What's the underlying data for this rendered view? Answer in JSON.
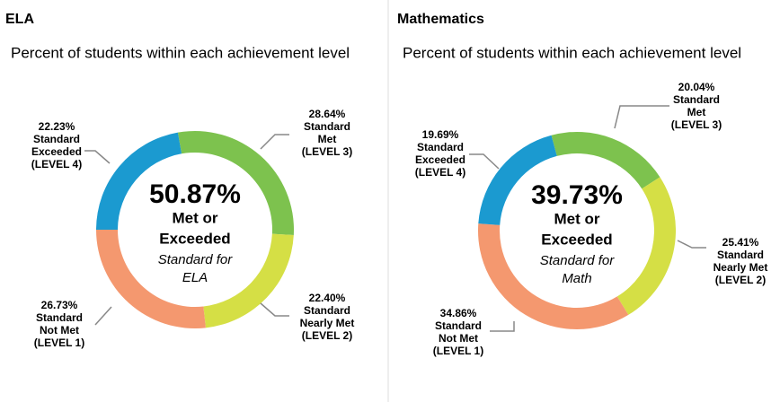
{
  "chart_data": [
    {
      "type": "pie",
      "title": "ELA",
      "subtitle": "Percent of students within each achievement level",
      "center": {
        "value": 50.87,
        "label": "50.87%"
      },
      "center_text": [
        "Met or",
        "Exceeded"
      ],
      "center_note": [
        "Standard for",
        "ELA"
      ],
      "categories": [
        [
          "Standard",
          "Met",
          "(LEVEL 3)"
        ],
        [
          "Standard",
          "Nearly Met",
          "(LEVEL 2)"
        ],
        [
          "Standard",
          "Not Met",
          "(LEVEL 1)"
        ],
        [
          "Standard",
          "Exceeded",
          "(LEVEL 4)"
        ]
      ],
      "values": [
        28.64,
        22.4,
        26.73,
        22.23
      ],
      "value_labels": [
        "28.64%",
        "22.40%",
        "26.73%",
        "22.23%"
      ],
      "colors": [
        "#7dc24e",
        "#d5df45",
        "#f4986f",
        "#1b9ad0"
      ]
    },
    {
      "type": "pie",
      "title": "Mathematics",
      "subtitle": "Percent of students within each achievement level",
      "center": {
        "value": 39.73,
        "label": "39.73%"
      },
      "center_text": [
        "Met or",
        "Exceeded"
      ],
      "center_note": [
        "Standard for",
        "Math"
      ],
      "categories": [
        [
          "Standard",
          "Met",
          "(LEVEL 3)"
        ],
        [
          "Standard",
          "Nearly Met",
          "(LEVEL 2)"
        ],
        [
          "Standard",
          "Not Met",
          "(LEVEL 1)"
        ],
        [
          "Standard",
          "Exceeded",
          "(LEVEL 4)"
        ]
      ],
      "values": [
        20.04,
        25.41,
        34.86,
        19.69
      ],
      "value_labels": [
        "20.04%",
        "25.41%",
        "34.86%",
        "19.69%"
      ],
      "colors": [
        "#7dc24e",
        "#d5df45",
        "#f4986f",
        "#1b9ad0"
      ]
    }
  ]
}
